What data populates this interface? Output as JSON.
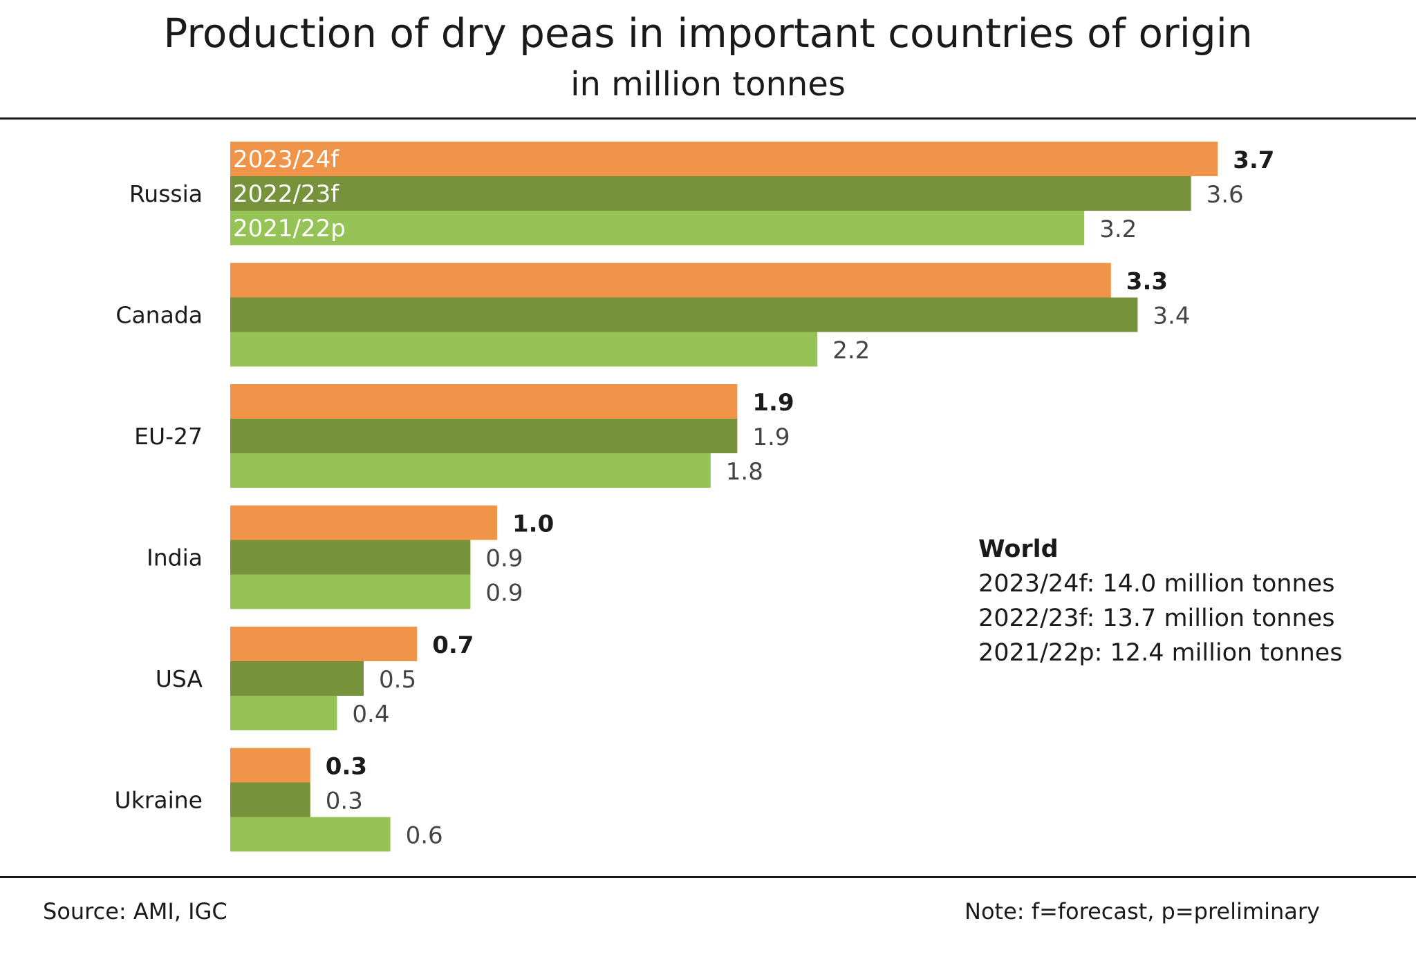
{
  "chart_data": {
    "type": "bar",
    "orientation": "horizontal",
    "title": "Production of dry peas in important countries of origin",
    "subtitle": "in million tonnes",
    "categories": [
      "Russia",
      "Canada",
      "EU-27",
      "India",
      "USA",
      "Ukraine"
    ],
    "series": [
      {
        "name": "2023/24f",
        "color": "#f0944a",
        "values": [
          3.7,
          3.3,
          1.9,
          1.0,
          0.7,
          0.3
        ],
        "labels": [
          "3.7",
          "3.3",
          "1.9",
          "1.0",
          "0.7",
          "0.3"
        ]
      },
      {
        "name": "2022/23f",
        "color": "#76923b",
        "values": [
          3.6,
          3.4,
          1.9,
          0.9,
          0.5,
          0.3
        ],
        "labels": [
          "3.6",
          "3.4",
          "1.9",
          "0.9",
          "0.5",
          "0.3"
        ]
      },
      {
        "name": "2021/22p",
        "color": "#95c355",
        "values": [
          3.2,
          2.2,
          1.8,
          0.9,
          0.4,
          0.6
        ],
        "labels": [
          "3.2",
          "2.2",
          "1.8",
          "0.9",
          "0.4",
          "0.6"
        ]
      }
    ],
    "legend": "inline in first category bars",
    "grid": false
  },
  "annotation": {
    "heading": "World",
    "lines": [
      "2023/24f: 14.0 million tonnes",
      "2022/23f: 13.7 million tonnes",
      "2021/22p: 12.4 million tonnes"
    ]
  },
  "footer": {
    "source": "Source:  AMI, IGC",
    "note": "Note: f=forecast, p=preliminary"
  }
}
